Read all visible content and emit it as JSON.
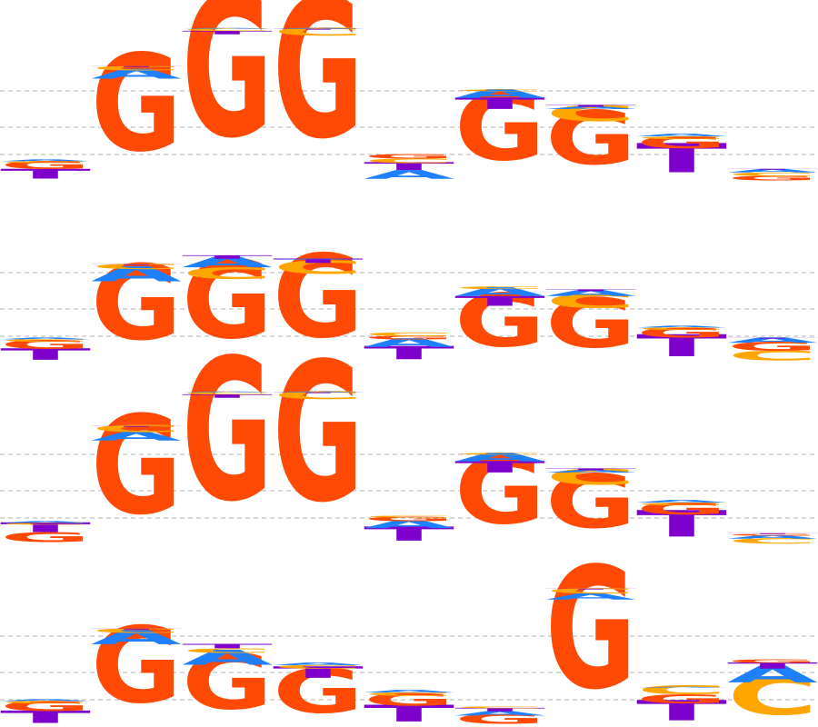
{
  "colors": {
    "A": "#1E7FFF",
    "C": "#FFA500",
    "G": "#FF4A05",
    "T": "#7F00CC",
    "gridline": "#b3b3b3"
  },
  "alphabet": [
    "A",
    "C",
    "G",
    "T"
  ],
  "chart_data": {
    "type": "sequence-logo",
    "ylabel": "",
    "ylim": [
      0,
      2
    ],
    "gridlines_bits": [
      0.3,
      0.6,
      1.0
    ],
    "logos": [
      {
        "positions": [
          [
            {
              "l": "G",
              "h": 0.09
            },
            {
              "l": "T",
              "h": 0.11
            },
            {
              "l": "C",
              "h": 0.02
            },
            {
              "l": "A",
              "h": 0.02
            }
          ],
          [
            {
              "l": "G",
              "h": 1.1
            },
            {
              "l": "A",
              "h": 0.11
            },
            {
              "l": "C",
              "h": 0.05
            },
            {
              "l": "T",
              "h": 0.01
            }
          ],
          [
            {
              "l": "G",
              "h": 1.61
            },
            {
              "l": "T",
              "h": 0.04
            },
            {
              "l": "C",
              "h": 0.03
            },
            {
              "l": "A",
              "h": 0.01
            }
          ],
          [
            {
              "l": "G",
              "h": 1.58
            },
            {
              "l": "C",
              "h": 0.09
            },
            {
              "l": "T",
              "h": 0.01
            },
            {
              "l": "A",
              "h": 0.01
            }
          ],
          [
            {
              "l": "T",
              "h": 0.09
            },
            {
              "l": "A",
              "h": 0.1
            },
            {
              "l": "C",
              "h": 0.05
            },
            {
              "l": "G",
              "h": 0.05
            }
          ],
          [
            {
              "l": "G",
              "h": 0.76
            },
            {
              "l": "T",
              "h": 0.13
            },
            {
              "l": "A",
              "h": 0.1
            },
            {
              "l": "C",
              "h": 0.02
            }
          ],
          [
            {
              "l": "G",
              "h": 0.61
            },
            {
              "l": "C",
              "h": 0.18
            },
            {
              "l": "A",
              "h": 0.03
            },
            {
              "l": "T",
              "h": 0.02
            }
          ],
          [
            {
              "l": "T",
              "h": 0.33
            },
            {
              "l": "G",
              "h": 0.13
            },
            {
              "l": "C",
              "h": 0.03
            },
            {
              "l": "A",
              "h": 0.03
            }
          ],
          [
            {
              "l": "C",
              "h": 0.04
            },
            {
              "l": "G",
              "h": 0.05
            },
            {
              "l": "A",
              "h": 0.04
            },
            {
              "l": "T",
              "h": 0.01
            }
          ]
        ]
      },
      {
        "positions": [
          [
            {
              "l": "G",
              "h": 0.1
            },
            {
              "l": "T",
              "h": 0.13
            },
            {
              "l": "C",
              "h": 0.03
            },
            {
              "l": "A",
              "h": 0.02
            }
          ],
          [
            {
              "l": "G",
              "h": 0.85
            },
            {
              "l": "A",
              "h": 0.17
            },
            {
              "l": "C",
              "h": 0.06
            },
            {
              "l": "T",
              "h": 0.01
            }
          ],
          [
            {
              "l": "G",
              "h": 0.89
            },
            {
              "l": "C",
              "h": 0.13
            },
            {
              "l": "A",
              "h": 0.12
            },
            {
              "l": "T",
              "h": 0.04
            }
          ],
          [
            {
              "l": "G",
              "h": 0.94
            },
            {
              "l": "C",
              "h": 0.15
            },
            {
              "l": "T",
              "h": 0.05
            },
            {
              "l": "A",
              "h": 0.01
            }
          ],
          [
            {
              "l": "T",
              "h": 0.15
            },
            {
              "l": "A",
              "h": 0.1
            },
            {
              "l": "G",
              "h": 0.04
            },
            {
              "l": "C",
              "h": 0.04
            }
          ],
          [
            {
              "l": "G",
              "h": 0.6
            },
            {
              "l": "T",
              "h": 0.11
            },
            {
              "l": "A",
              "h": 0.1
            },
            {
              "l": "C",
              "h": 0.03
            }
          ],
          [
            {
              "l": "G",
              "h": 0.56
            },
            {
              "l": "C",
              "h": 0.16
            },
            {
              "l": "A",
              "h": 0.07
            },
            {
              "l": "T",
              "h": 0.02
            }
          ],
          [
            {
              "l": "T",
              "h": 0.25
            },
            {
              "l": "G",
              "h": 0.11
            },
            {
              "l": "C",
              "h": 0.03
            },
            {
              "l": "A",
              "h": 0.02
            }
          ],
          [
            {
              "l": "C",
              "h": 0.11
            },
            {
              "l": "G",
              "h": 0.1
            },
            {
              "l": "A",
              "h": 0.06
            },
            {
              "l": "T",
              "h": 0.01
            }
          ]
        ]
      },
      {
        "positions": [
          [
            {
              "l": "G",
              "h": 0.11
            },
            {
              "l": "T",
              "h": 0.11
            },
            {
              "l": "C",
              "h": 0.02
            },
            {
              "l": "A",
              "h": 0.02
            }
          ],
          [
            {
              "l": "G",
              "h": 1.12
            },
            {
              "l": "A",
              "h": 0.1
            },
            {
              "l": "C",
              "h": 0.08
            },
            {
              "l": "T",
              "h": 0.01
            }
          ],
          [
            {
              "l": "G",
              "h": 1.61
            },
            {
              "l": "T",
              "h": 0.04
            },
            {
              "l": "C",
              "h": 0.03
            },
            {
              "l": "A",
              "h": 0.01
            }
          ],
          [
            {
              "l": "G",
              "h": 1.58
            },
            {
              "l": "C",
              "h": 0.09
            },
            {
              "l": "T",
              "h": 0.01
            },
            {
              "l": "A",
              "h": 0.01
            }
          ],
          [
            {
              "l": "T",
              "h": 0.16
            },
            {
              "l": "A",
              "h": 0.09
            },
            {
              "l": "G",
              "h": 0.05
            },
            {
              "l": "C",
              "h": 0.02
            }
          ],
          [
            {
              "l": "G",
              "h": 0.76
            },
            {
              "l": "T",
              "h": 0.13
            },
            {
              "l": "A",
              "h": 0.1
            },
            {
              "l": "C",
              "h": 0.02
            }
          ],
          [
            {
              "l": "G",
              "h": 0.61
            },
            {
              "l": "C",
              "h": 0.18
            },
            {
              "l": "A",
              "h": 0.03
            },
            {
              "l": "T",
              "h": 0.02
            }
          ],
          [
            {
              "l": "T",
              "h": 0.3
            },
            {
              "l": "G",
              "h": 0.13
            },
            {
              "l": "C",
              "h": 0.03
            },
            {
              "l": "A",
              "h": 0.03
            }
          ],
          [
            {
              "l": "C",
              "h": 0.06
            },
            {
              "l": "A",
              "h": 0.04
            },
            {
              "l": "G",
              "h": 0.02
            },
            {
              "l": "T",
              "h": 0.01
            }
          ]
        ]
      },
      {
        "positions": [
          [
            {
              "l": "G",
              "h": 0.11
            },
            {
              "l": "T",
              "h": 0.14
            },
            {
              "l": "C",
              "h": 0.03
            },
            {
              "l": "A",
              "h": 0.02
            }
          ],
          [
            {
              "l": "G",
              "h": 0.86
            },
            {
              "l": "A",
              "h": 0.16
            },
            {
              "l": "C",
              "h": 0.05
            },
            {
              "l": "T",
              "h": 0.01
            }
          ],
          [
            {
              "l": "G",
              "h": 0.63
            },
            {
              "l": "A",
              "h": 0.17
            },
            {
              "l": "C",
              "h": 0.05
            },
            {
              "l": "T",
              "h": 0.05
            }
          ],
          [
            {
              "l": "G",
              "h": 0.5
            },
            {
              "l": "T",
              "h": 0.13
            },
            {
              "l": "C",
              "h": 0.04
            },
            {
              "l": "A",
              "h": 0.03
            }
          ],
          [
            {
              "l": "T",
              "h": 0.19
            },
            {
              "l": "G",
              "h": 0.14
            },
            {
              "l": "C",
              "h": 0.04
            },
            {
              "l": "A",
              "h": 0.03
            }
          ],
          [
            {
              "l": "G",
              "h": 0.11
            },
            {
              "l": "A",
              "h": 0.05
            },
            {
              "l": "T",
              "h": 0.04
            },
            {
              "l": "C",
              "h": 0.02
            }
          ],
          [
            {
              "l": "G",
              "h": 1.38
            },
            {
              "l": "A",
              "h": 0.07
            },
            {
              "l": "C",
              "h": 0.06
            },
            {
              "l": "T",
              "h": 0.01
            }
          ],
          [
            {
              "l": "T",
              "h": 0.23
            },
            {
              "l": "G",
              "h": 0.1
            },
            {
              "l": "C",
              "h": 0.1
            },
            {
              "l": "A",
              "h": 0.01
            }
          ],
          [
            {
              "l": "C",
              "h": 0.43
            },
            {
              "l": "A",
              "h": 0.19
            },
            {
              "l": "T",
              "h": 0.07
            },
            {
              "l": "G",
              "h": 0.04
            }
          ]
        ]
      }
    ]
  }
}
